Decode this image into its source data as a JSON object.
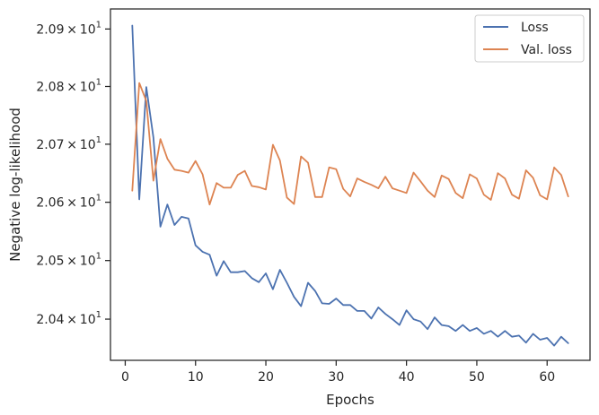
{
  "chart_data": {
    "type": "line",
    "xlabel": "Epochs",
    "ylabel": "Negative log-likelihood",
    "xlim": [
      -2.1,
      66.1
    ],
    "ylim": [
      20.33,
      20.935
    ],
    "xticks": [
      0,
      10,
      20,
      30,
      40,
      50,
      60
    ],
    "xtick_labels": [
      "0",
      "10",
      "20",
      "30",
      "40",
      "50",
      "60"
    ],
    "yticks": [
      20.4,
      20.5,
      20.6,
      20.7,
      20.8,
      20.9
    ],
    "ytick_labels": [
      {
        "mantissa": "2.04",
        "base": "10",
        "exp": "1"
      },
      {
        "mantissa": "2.05",
        "base": "10",
        "exp": "1"
      },
      {
        "mantissa": "2.06",
        "base": "10",
        "exp": "1"
      },
      {
        "mantissa": "2.07",
        "base": "10",
        "exp": "1"
      },
      {
        "mantissa": "2.08",
        "base": "10",
        "exp": "1"
      },
      {
        "mantissa": "2.09",
        "base": "10",
        "exp": "1"
      }
    ],
    "y_scale": "log",
    "grid": false,
    "legend_position": "top-right",
    "series": [
      {
        "name": "Loss",
        "color": "#4c72b0",
        "x": [
          1,
          2,
          3,
          4,
          5,
          6,
          7,
          8,
          9,
          10,
          11,
          12,
          13,
          14,
          15,
          16,
          17,
          18,
          19,
          20,
          21,
          22,
          23,
          24,
          25,
          26,
          27,
          28,
          29,
          30,
          31,
          32,
          33,
          34,
          35,
          36,
          37,
          38,
          39,
          40,
          41,
          42,
          43,
          44,
          45,
          46,
          47,
          48,
          49,
          50,
          51,
          52,
          53,
          54,
          55,
          56,
          57,
          58,
          59,
          60,
          61,
          62,
          63
        ],
        "values": [
          20.906,
          20.605,
          20.799,
          20.712,
          20.558,
          20.596,
          20.561,
          20.575,
          20.572,
          20.526,
          20.515,
          20.51,
          20.474,
          20.499,
          20.48,
          20.48,
          20.482,
          20.47,
          20.463,
          20.478,
          20.451,
          20.484,
          20.462,
          20.438,
          20.422,
          20.462,
          20.448,
          20.427,
          20.426,
          20.435,
          20.424,
          20.424,
          20.414,
          20.414,
          20.401,
          20.42,
          20.409,
          20.4,
          20.39,
          20.415,
          20.4,
          20.396,
          20.383,
          20.403,
          20.39,
          20.388,
          20.38,
          20.39,
          20.38,
          20.385,
          20.375,
          20.38,
          20.37,
          20.38,
          20.37,
          20.372,
          20.36,
          20.375,
          20.365,
          20.368,
          20.355,
          20.37,
          20.359
        ]
      },
      {
        "name": "Val. loss",
        "color": "#dd8452",
        "x": [
          1,
          2,
          3,
          4,
          5,
          6,
          7,
          8,
          9,
          10,
          11,
          12,
          13,
          14,
          15,
          16,
          17,
          18,
          19,
          20,
          21,
          22,
          23,
          24,
          25,
          26,
          27,
          28,
          29,
          30,
          31,
          32,
          33,
          34,
          35,
          36,
          37,
          38,
          39,
          40,
          41,
          42,
          43,
          44,
          45,
          46,
          47,
          48,
          49,
          50,
          51,
          52,
          53,
          54,
          55,
          56,
          57,
          58,
          59,
          60,
          61,
          62,
          63
        ],
        "values": [
          20.62,
          20.806,
          20.775,
          20.637,
          20.709,
          20.675,
          20.656,
          20.654,
          20.651,
          20.671,
          20.648,
          20.596,
          20.633,
          20.625,
          20.625,
          20.647,
          20.654,
          20.628,
          20.626,
          20.622,
          20.699,
          20.672,
          20.608,
          20.597,
          20.679,
          20.668,
          20.609,
          20.609,
          20.66,
          20.657,
          20.623,
          20.61,
          20.641,
          20.635,
          20.63,
          20.624,
          20.644,
          20.624,
          20.62,
          20.616,
          20.651,
          20.636,
          20.62,
          20.609,
          20.646,
          20.64,
          20.616,
          20.607,
          20.648,
          20.641,
          20.613,
          20.604,
          20.65,
          20.641,
          20.613,
          20.606,
          20.655,
          20.642,
          20.612,
          20.605,
          20.66,
          20.647,
          20.61
        ]
      }
    ]
  }
}
